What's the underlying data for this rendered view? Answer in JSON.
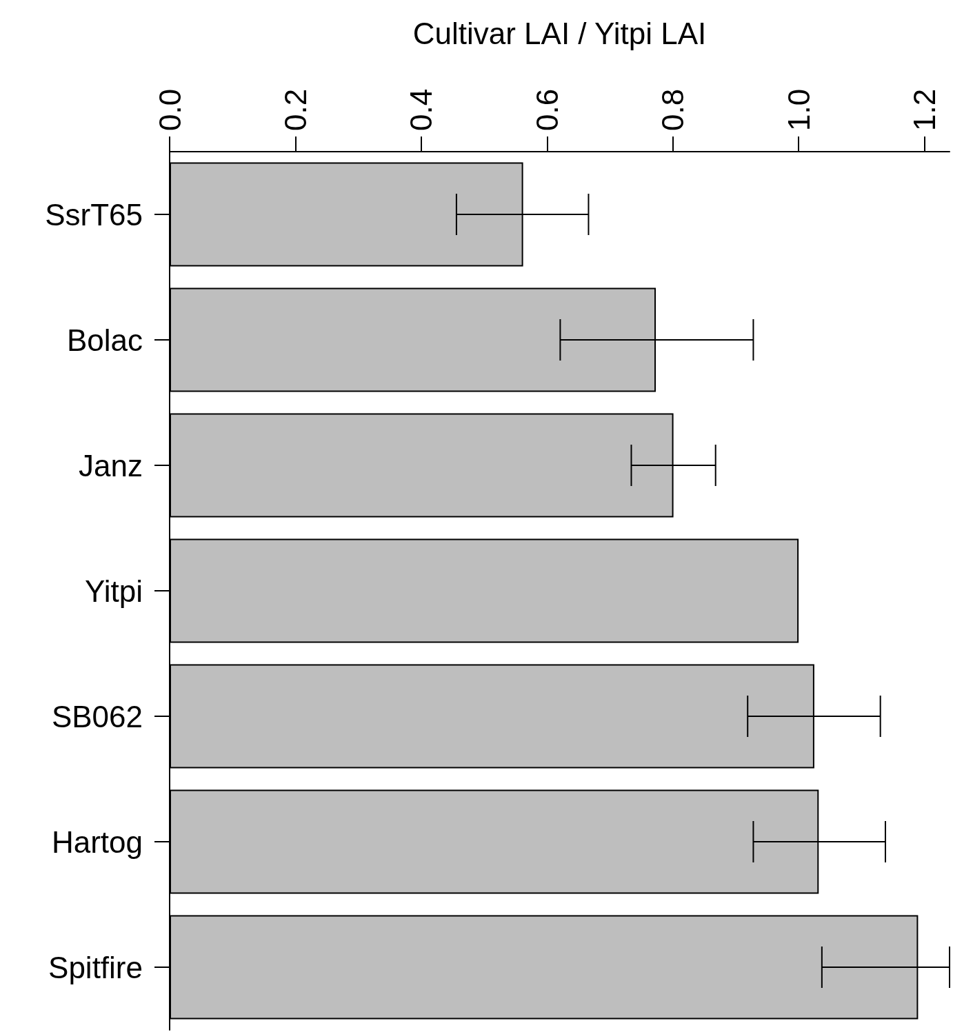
{
  "chart_data": {
    "type": "bar",
    "orientation": "horizontal",
    "xlabel": "Cultivar LAI / Yitpi LAI",
    "categories": [
      "SsrT65",
      "Bolac",
      "Janz",
      "Yitpi",
      "SB062",
      "Hartog",
      "Spitfire"
    ],
    "values": [
      0.562,
      0.773,
      0.801,
      1.0,
      1.025,
      1.032,
      1.19
    ],
    "errors": [
      [
        0.456,
        0.666
      ],
      [
        0.621,
        0.928
      ],
      [
        0.734,
        0.868
      ],
      null,
      [
        0.919,
        1.13
      ],
      [
        0.928,
        1.138
      ],
      [
        1.037,
        1.24
      ]
    ],
    "color": "#bebebe",
    "xlim": [
      0,
      1.24
    ],
    "xticks": [
      {
        "value": 0,
        "label": "0.0"
      },
      0.2,
      0.4,
      0.6,
      0.8,
      {
        "value": 1,
        "label": "1.0"
      },
      1.2
    ],
    "grid": false
  }
}
